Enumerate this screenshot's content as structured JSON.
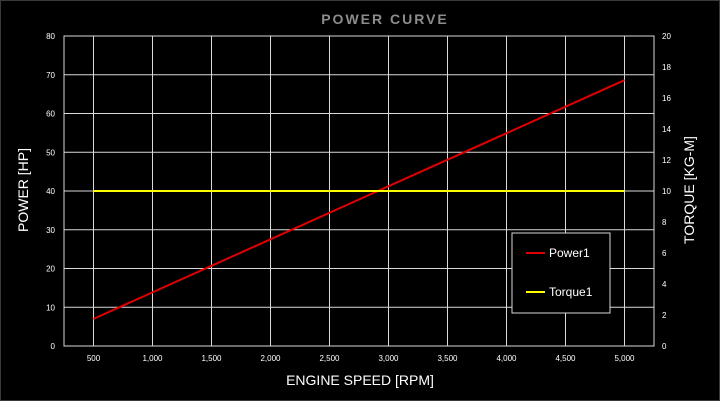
{
  "chart_data": {
    "type": "line",
    "title": "POWER CURVE",
    "xlabel": "ENGINE SPEED [RPM]",
    "ylabel": "POWER [HP]",
    "y2label": "TORQUE [KG-M]",
    "xlim": [
      250,
      5250
    ],
    "ylim": [
      0,
      80
    ],
    "y2lim": [
      0,
      20
    ],
    "x_ticks": [
      500,
      1000,
      1500,
      2000,
      2500,
      3000,
      3500,
      4000,
      4500,
      5000
    ],
    "x_tick_labels": [
      "500",
      "1,000",
      "1,500",
      "2,000",
      "2,500",
      "3,000",
      "3,500",
      "4,000",
      "4,500",
      "5,000"
    ],
    "y_ticks": [
      0,
      10,
      20,
      30,
      40,
      50,
      60,
      70,
      80
    ],
    "y_tick_labels": [
      "0",
      "10",
      "20",
      "30",
      "40",
      "50",
      "60",
      "70",
      "80"
    ],
    "y2_ticks": [
      0,
      2,
      4,
      6,
      8,
      10,
      12,
      14,
      16,
      18,
      20
    ],
    "y2_tick_labels": [
      "0",
      "2",
      "4",
      "6",
      "8",
      "10",
      "12",
      "14",
      "16",
      "18",
      "20"
    ],
    "grid": true,
    "legend_position": "bottom-right",
    "series": [
      {
        "name": "Power1",
        "axis": "left",
        "color": "#e00000",
        "x": [
          500,
          5000
        ],
        "values": [
          7,
          68.6
        ]
      },
      {
        "name": "Torque1",
        "axis": "right",
        "color": "#ffff00",
        "x": [
          500,
          5000
        ],
        "values": [
          10,
          10
        ]
      }
    ]
  }
}
